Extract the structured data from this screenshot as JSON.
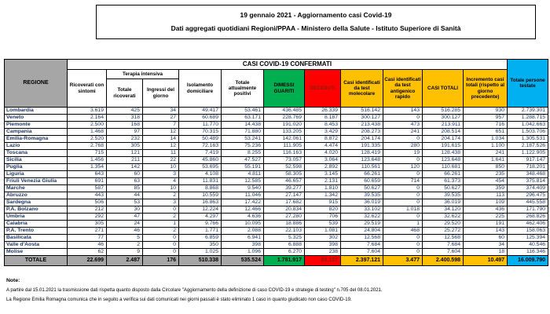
{
  "title_box": {
    "line1": "19 gennaio 2021 - Aggiornamento casi Covid-19",
    "line2": "Dati aggregati quotidiani Regioni/PPAA - Ministero della Salute - Istituto Superiore di Sanità"
  },
  "table": {
    "main_header": "CASI COVID-19 CONFERMATI",
    "headers": {
      "regione": "REGIONE",
      "ricoverati": "Ricoverati con sintomi",
      "terapia_intensiva": "Terapia intensiva",
      "totale_ricoverati": "Totale ricoverati",
      "ingressi_giorno": "Ingressi del giorno",
      "isolamento": "Isolamento domiciliare",
      "attualmente_positivi": "Totale attualmente positivi",
      "dimessi_guariti": "DIMESSI GUARITI",
      "deceduti": "DECEDUTI",
      "test_molecolare": "Casi identificati da test molecolare",
      "test_antigenico": "Casi identificati da test antigenico rapido",
      "casi_totali": "CASI TOTALI",
      "incremento": "Incremento casi totali (rispetto al giorno precedente)",
      "persone_testate": "Totale persone testate"
    },
    "rows": [
      [
        "Lombardia",
        "3.619",
        "425",
        "34",
        "49.417",
        "53.461",
        "436.485",
        "26.339",
        "516.142",
        "143",
        "516.285",
        "930",
        "2.739.301"
      ],
      [
        "Veneto",
        "2.164",
        "318",
        "27",
        "60.689",
        "63.171",
        "228.769",
        "8.187",
        "300.127",
        "0",
        "300.127",
        "957",
        "1.288.715"
      ],
      [
        "Piemonte",
        "2.500",
        "168",
        "7",
        "11.770",
        "14.438",
        "191.020",
        "8.453",
        "213.438",
        "473",
        "213.911",
        "716",
        "1.042.663"
      ],
      [
        "Campania",
        "1.468",
        "97",
        "12",
        "70.315",
        "71.880",
        "133.205",
        "3.429",
        "208.273",
        "241",
        "208.514",
        "651",
        "1.503.706"
      ],
      [
        "Emilia-Romagna",
        "2.520",
        "232",
        "14",
        "50.489",
        "53.241",
        "142.061",
        "8.872",
        "204.174",
        "0",
        "204.174",
        "1.034",
        "1.305.531"
      ],
      [
        "Lazio",
        "2.768",
        "305",
        "12",
        "72.163",
        "75.236",
        "111.905",
        "4.474",
        "191.335",
        "280",
        "191.615",
        "1.100",
        "2.187.526"
      ],
      [
        "Toscana",
        "715",
        "121",
        "11",
        "7.419",
        "8.255",
        "116.163",
        "4.020",
        "128.419",
        "19",
        "128.438",
        "241",
        "1.122.905"
      ],
      [
        "Sicilia",
        "1.456",
        "211",
        "22",
        "45.860",
        "47.527",
        "73.057",
        "3.064",
        "123.648",
        "0",
        "123.648",
        "1.641",
        "917.147"
      ],
      [
        "Puglia",
        "1.354",
        "142",
        "10",
        "53.695",
        "55.191",
        "52.598",
        "2.892",
        "110.561",
        "120",
        "110.681",
        "850",
        "718.201"
      ],
      [
        "Liguria",
        "643",
        "60",
        "3",
        "4.108",
        "4.811",
        "58.305",
        "3.145",
        "66.261",
        "0",
        "66.261",
        "235",
        "348.468"
      ],
      [
        "Friuli Venezia Giulia",
        "691",
        "63",
        "4",
        "11.831",
        "12.585",
        "46.657",
        "2.131",
        "60.659",
        "714",
        "61.373",
        "454",
        "375.814"
      ],
      [
        "Marche",
        "587",
        "85",
        "10",
        "8.868",
        "9.540",
        "39.277",
        "1.810",
        "50.627",
        "0",
        "50.627",
        "359",
        "374.409"
      ],
      [
        "Abruzzo",
        "443",
        "44",
        "2",
        "10.559",
        "11.046",
        "27.147",
        "1.342",
        "39.535",
        "0",
        "39.535",
        "113",
        "296.475"
      ],
      [
        "Sardegna",
        "506",
        "53",
        "3",
        "16.863",
        "17.422",
        "17.682",
        "915",
        "36.019",
        "0",
        "36.019",
        "109",
        "445.558"
      ],
      [
        "P.A. Bolzano",
        "212",
        "30",
        "0",
        "12.224",
        "12.466",
        "20.834",
        "820",
        "33.102",
        "1.018",
        "34.120",
        "436",
        "171.790"
      ],
      [
        "Umbria",
        "292",
        "47",
        "2",
        "4.297",
        "4.636",
        "27.280",
        "706",
        "32.622",
        "0",
        "32.622",
        "225",
        "268.826"
      ],
      [
        "Calabria",
        "305",
        "24",
        "1",
        "9.766",
        "10.095",
        "18.886",
        "539",
        "29.519",
        "1",
        "29.520",
        "191",
        "462.406"
      ],
      [
        "P.A. Trento",
        "271",
        "46",
        "2",
        "1.771",
        "2.088",
        "22.103",
        "1.081",
        "24.804",
        "468",
        "25.272",
        "143",
        "158.063"
      ],
      [
        "Basilicata",
        "77",
        "5",
        "0",
        "6.859",
        "6.941",
        "5.325",
        "302",
        "12.568",
        "0",
        "12.568",
        "60",
        "125.394"
      ],
      [
        "Valle d'Aosta",
        "46",
        "2",
        "0",
        "350",
        "398",
        "6.888",
        "398",
        "7.684",
        "0",
        "7.684",
        "34",
        "40.546"
      ],
      [
        "Molise",
        "62",
        "9",
        "0",
        "1.025",
        "1.096",
        "6.270",
        "238",
        "7.604",
        "0",
        "7.604",
        "18",
        "116.346"
      ]
    ],
    "totals": [
      "TOTALE",
      "22.699",
      "2.487",
      "176",
      "510.338",
      "535.524",
      "1.781.917",
      "83.157",
      "2.397.121",
      "3.477",
      "2.400.598",
      "10.497",
      "16.009.790"
    ]
  },
  "notes": {
    "label": "Note:",
    "lines": [
      "A partire dal 15.01.2021 la trasmissione dati rispetta quanto disposto dalla Circolare \"Aggiornamento della definizione di caso COVID-19 e strategie di testing\" n.705 del 08.01.2021.",
      "La Regione Emilia Romagna comunica che in seguito a verifica sui dati comunicati nei giorni passati è stato eliminato 1 caso in quanto giudicato non caso COVID-19."
    ]
  },
  "colors": {
    "green": "#00b050",
    "red": "#ff0000",
    "amber": "#ffc000",
    "blue": "#00b0f0",
    "gray": "#a6a6a6",
    "navy": "#1f3864",
    "dark_red": "#8b1a10"
  }
}
